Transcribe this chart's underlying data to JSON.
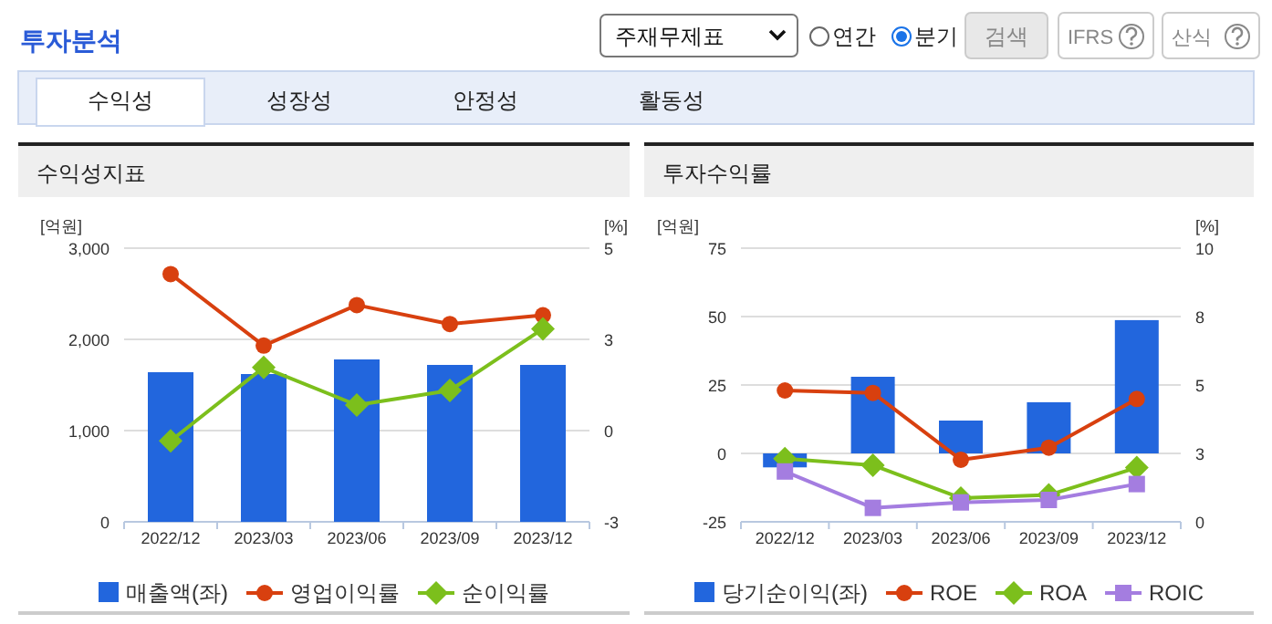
{
  "chart_data": [
    {
      "type": "other",
      "title": "투자분석",
      "annotations": [
        "주재무제표",
        "연간",
        "분기",
        "검색",
        "IFRS",
        "산식",
        "수익성",
        "성장성",
        "안정성",
        "활동성"
      ]
    },
    {
      "type": "bar",
      "title": "수익성지표",
      "ylabel": "[억원]",
      "y2label": "[%]",
      "categories": [
        "2022/12",
        "2023/03",
        "2023/06",
        "2023/09",
        "2023/12"
      ],
      "series": [
        {
          "name": "매출액(좌)",
          "type": "bar",
          "color": "#2266dd",
          "values": [
            1640,
            1620,
            1780,
            1720,
            1720
          ]
        },
        {
          "name": "영업이익률",
          "type": "line",
          "axis": "y2",
          "marker": "circle",
          "color": "#d8400f",
          "values": [
            4.29,
            2.33,
            3.44,
            2.92,
            3.16
          ]
        },
        {
          "name": "순이익률",
          "type": "line",
          "axis": "y2",
          "marker": "diamond",
          "color": "#7cbf1c",
          "values": [
            -0.28,
            1.73,
            0.7,
            1.1,
            2.79
          ]
        }
      ],
      "ylim": [
        0,
        3000
      ],
      "yticks": [
        0,
        {
          "value": 1000,
          "label": "1,000"
        },
        {
          "value": 2000,
          "label": "2,000"
        },
        {
          "value": 3000,
          "label": "3,000"
        }
      ],
      "y2lim": [
        -2.5,
        5
      ],
      "y2ticks": [
        {
          "value": -2.5,
          "label": "-3"
        },
        0,
        {
          "value": 2.5,
          "label": "3"
        },
        5
      ],
      "grid": "y",
      "legend": "bottom"
    },
    {
      "type": "bar",
      "title": "투자수익률",
      "ylabel": "[억원]",
      "y2label": "[%]",
      "categories": [
        "2022/12",
        "2023/03",
        "2023/06",
        "2023/09",
        "2023/12"
      ],
      "series": [
        {
          "name": "당기순이익(좌)",
          "type": "bar",
          "color": "#2266dd",
          "values": [
            -5.1,
            28,
            12,
            18.7,
            48.7
          ]
        },
        {
          "name": "ROE",
          "type": "line",
          "axis": "y2",
          "marker": "circle",
          "color": "#d8400f",
          "values": [
            4.8,
            4.71,
            2.27,
            2.71,
            4.49
          ]
        },
        {
          "name": "ROA",
          "type": "line",
          "axis": "y2",
          "marker": "diamond",
          "color": "#7cbf1c",
          "values": [
            2.31,
            2.07,
            0.87,
            0.98,
            1.98
          ]
        },
        {
          "name": "ROIC",
          "type": "line",
          "axis": "y2",
          "marker": "square",
          "color": "#a47de0",
          "values": [
            1.84,
            0.51,
            0.71,
            0.8,
            1.38
          ]
        }
      ],
      "ylim": [
        -25,
        75
      ],
      "yticks": [
        -25,
        0,
        25,
        50,
        75
      ],
      "y2lim": [
        0,
        10
      ],
      "y2ticks": [
        0,
        {
          "value": 2.5,
          "label": "3"
        },
        5,
        {
          "value": 7.5,
          "label": "8"
        },
        10
      ],
      "grid": "y",
      "legend": "bottom"
    }
  ]
}
